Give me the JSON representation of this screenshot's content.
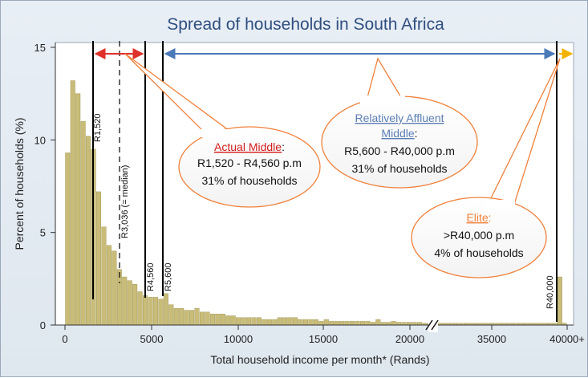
{
  "chart_data": {
    "type": "bar",
    "title": "Spread of households in South Africa",
    "xlabel": "Total household income per month* (Rands)",
    "ylabel": "Percent of households (%)",
    "ylim": [
      0,
      15
    ],
    "yticks": [
      0,
      5,
      10,
      15
    ],
    "xticks": [
      "0",
      "5000",
      "10000",
      "15000",
      "20000",
      "35000",
      "40000+"
    ],
    "axis_break": "between 20000 and 35000",
    "bar_color": "#c8bc78",
    "values": [
      9.3,
      13.2,
      12.5,
      11.0,
      10.2,
      9.5,
      7.2,
      5.3,
      4.3,
      4.0,
      3.0,
      2.6,
      2.4,
      2.2,
      1.8,
      1.6,
      1.5,
      1.5,
      1.4,
      1.7,
      1.1,
      0.9,
      0.9,
      0.8,
      0.8,
      0.9,
      0.7,
      0.7,
      0.6,
      0.6,
      0.6,
      0.5,
      0.5,
      0.4,
      0.4,
      0.4,
      0.4,
      0.4,
      0.3,
      0.3,
      0.3,
      0.4,
      0.4,
      0.4,
      0.4,
      0.3,
      0.3,
      0.3,
      0.3,
      0.2,
      0.3,
      0.2,
      0.2,
      0.2,
      0.2,
      0.2,
      0.2,
      0.2,
      0.2,
      0.15,
      0.3,
      0.15,
      0.15,
      0.2,
      0.15,
      0.15,
      0.15,
      0.15,
      0.15,
      0.1,
      0.1,
      0.1,
      0.1,
      0.1,
      0.1,
      0.1,
      0.1,
      0.1,
      0.1,
      0.1,
      0.1,
      0.1,
      0.1,
      0.1,
      0.1,
      0.1,
      0.1,
      0.1,
      0.1,
      0.1,
      0.1,
      0.1,
      0.1,
      0.1,
      0.1,
      0.1,
      0.1,
      2.6
    ],
    "markers": [
      {
        "label": "R1,520",
        "value": 1520,
        "style": "solid"
      },
      {
        "label": "R3,036 (= median)",
        "value": 3036,
        "style": "dashed"
      },
      {
        "label": "R4,560",
        "value": 4560,
        "style": "solid"
      },
      {
        "label": "R5,600",
        "value": 5600,
        "style": "solid"
      },
      {
        "label": "R40,000",
        "value": 40000,
        "style": "solid"
      }
    ],
    "annotations": [
      {
        "id": "actual-middle",
        "heading": "Actual Middle",
        "heading_suffix": ":",
        "line1": "R1,520 - R4,560 p.m",
        "line2": "31% of households",
        "color": "#d21c1c"
      },
      {
        "id": "affluent-middle",
        "heading": "Relatively Affluent",
        "heading2": "Middle",
        "heading_suffix": ":",
        "line1": "R5,600 - R40,000 p.m",
        "line2": "31% of households",
        "color": "#5b7fb5"
      },
      {
        "id": "elite",
        "heading": "Elite",
        "heading_suffix": ":",
        "line1": ">R40,000 p.m",
        "line2": "4% of households",
        "color": "#f0803a"
      }
    ],
    "range_arrows": [
      {
        "name": "actual-middle-range",
        "color": "#e0302a"
      },
      {
        "name": "affluent-middle-range",
        "color": "#4a7ab8"
      },
      {
        "name": "elite-range",
        "color": "#f2b400"
      }
    ],
    "grid": false
  }
}
